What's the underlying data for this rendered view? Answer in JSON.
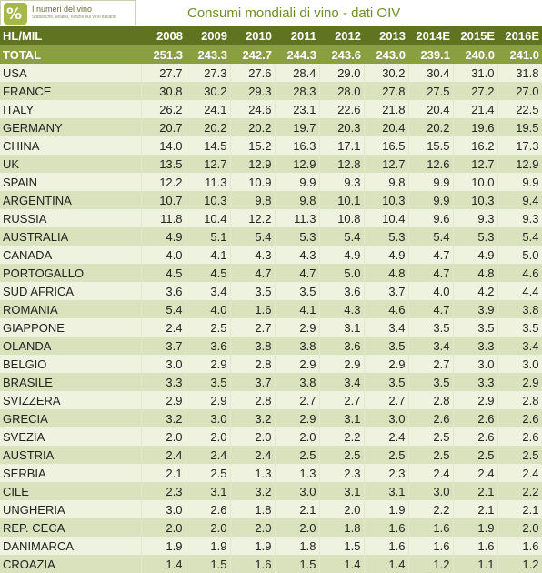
{
  "logo": {
    "title": "I numeri del vino",
    "subtitle": "Statistiche, analisi, notizie sul vino italiano"
  },
  "title": "Consumi mondiali di vino - dati OIV",
  "colors": {
    "header": "#5f7321",
    "total": "#8a9e42",
    "row_light": "#eef2de",
    "row_dark": "#d9e2bc",
    "title": "#6f8f22"
  },
  "chart_data": {
    "type": "table",
    "columns": [
      "HL/MIL",
      "2008",
      "2009",
      "2010",
      "2011",
      "2012",
      "2013",
      "2014E",
      "2015E",
      "2016E"
    ],
    "total": [
      "TOTAL",
      "251.3",
      "243.3",
      "242.7",
      "244.3",
      "243.6",
      "243.0",
      "239.1",
      "240.0",
      "241.0"
    ],
    "rows": [
      [
        "USA",
        "27.7",
        "27.3",
        "27.6",
        "28.4",
        "29.0",
        "30.2",
        "30.4",
        "31.0",
        "31.8"
      ],
      [
        "FRANCE",
        "30.8",
        "30.2",
        "29.3",
        "28.3",
        "28.0",
        "27.8",
        "27.5",
        "27.2",
        "27.0"
      ],
      [
        "ITALY",
        "26.2",
        "24.1",
        "24.6",
        "23.1",
        "22.6",
        "21.8",
        "20.4",
        "21.4",
        "22.5"
      ],
      [
        "GERMANY",
        "20.7",
        "20.2",
        "20.2",
        "19.7",
        "20.3",
        "20.4",
        "20.2",
        "19.6",
        "19.5"
      ],
      [
        "CHINA",
        "14.0",
        "14.5",
        "15.2",
        "16.3",
        "17.1",
        "16.5",
        "15.5",
        "16.2",
        "17.3"
      ],
      [
        "UK",
        "13.5",
        "12.7",
        "12.9",
        "12.9",
        "12.8",
        "12.7",
        "12.6",
        "12.7",
        "12.9"
      ],
      [
        "SPAIN",
        "12.2",
        "11.3",
        "10.9",
        "9.9",
        "9.3",
        "9.8",
        "9.9",
        "10.0",
        "9.9"
      ],
      [
        "ARGENTINA",
        "10.7",
        "10.3",
        "9.8",
        "9.8",
        "10.1",
        "10.3",
        "9.9",
        "10.3",
        "9.4"
      ],
      [
        "RUSSIA",
        "11.8",
        "10.4",
        "12.2",
        "11.3",
        "10.8",
        "10.4",
        "9.6",
        "9.3",
        "9.3"
      ],
      [
        "AUSTRALIA",
        "4.9",
        "5.1",
        "5.4",
        "5.3",
        "5.4",
        "5.3",
        "5.4",
        "5.3",
        "5.4"
      ],
      [
        "CANADA",
        "4.0",
        "4.1",
        "4.3",
        "4.3",
        "4.9",
        "4.9",
        "4.7",
        "4.9",
        "5.0"
      ],
      [
        "PORTOGALLO",
        "4.5",
        "4.5",
        "4.7",
        "4.7",
        "5.0",
        "4.8",
        "4.7",
        "4.8",
        "4.6"
      ],
      [
        "SUD AFRICA",
        "3.6",
        "3.4",
        "3.5",
        "3.5",
        "3.6",
        "3.7",
        "4.0",
        "4.2",
        "4.4"
      ],
      [
        "ROMANIA",
        "5.4",
        "4.0",
        "1.6",
        "4.1",
        "4.3",
        "4.6",
        "4.7",
        "3.9",
        "3.8"
      ],
      [
        "GIAPPONE",
        "2.4",
        "2.5",
        "2.7",
        "2.9",
        "3.1",
        "3.4",
        "3.5",
        "3.5",
        "3.5"
      ],
      [
        "OLANDA",
        "3.7",
        "3.6",
        "3.8",
        "3.8",
        "3.6",
        "3.5",
        "3.4",
        "3.3",
        "3.4"
      ],
      [
        "BELGIO",
        "3.0",
        "2.9",
        "2.8",
        "2.9",
        "2.9",
        "2.9",
        "2.7",
        "3.0",
        "3.0"
      ],
      [
        "BRASILE",
        "3.3",
        "3.5",
        "3.7",
        "3.8",
        "3.4",
        "3.5",
        "3.5",
        "3.3",
        "2.9"
      ],
      [
        "SVIZZERA",
        "2.9",
        "2.9",
        "2.8",
        "2.7",
        "2.7",
        "2.7",
        "2.8",
        "2.9",
        "2.8"
      ],
      [
        "GRECIA",
        "3.2",
        "3.0",
        "3.2",
        "2.9",
        "3.1",
        "3.0",
        "2.6",
        "2.6",
        "2.6"
      ],
      [
        "SVEZIA",
        "2.0",
        "2.0",
        "2.0",
        "2.0",
        "2.2",
        "2.4",
        "2.5",
        "2.6",
        "2.6"
      ],
      [
        "AUSTRIA",
        "2.4",
        "2.4",
        "2.4",
        "2.5",
        "2.5",
        "2.5",
        "2.5",
        "2.5",
        "2.5"
      ],
      [
        "SERBIA",
        "2.1",
        "2.5",
        "1.3",
        "1.3",
        "2.3",
        "2.3",
        "2.4",
        "2.4",
        "2.4"
      ],
      [
        "CILE",
        "2.3",
        "3.1",
        "3.2",
        "3.0",
        "3.1",
        "3.1",
        "3.0",
        "2.1",
        "2.2"
      ],
      [
        "UNGHERIA",
        "3.0",
        "2.6",
        "1.8",
        "2.1",
        "2.0",
        "1.9",
        "2.2",
        "2.1",
        "2.1"
      ],
      [
        "REP. CECA",
        "2.0",
        "2.0",
        "2.0",
        "2.0",
        "1.8",
        "1.6",
        "1.6",
        "1.9",
        "2.0"
      ],
      [
        "DANIMARCA",
        "1.9",
        "1.9",
        "1.9",
        "1.8",
        "1.5",
        "1.6",
        "1.6",
        "1.6",
        "1.6"
      ],
      [
        "CROAZIA",
        "1.4",
        "1.5",
        "1.6",
        "1.5",
        "1.4",
        "1.4",
        "1.2",
        "1.1",
        "1.2"
      ]
    ]
  }
}
